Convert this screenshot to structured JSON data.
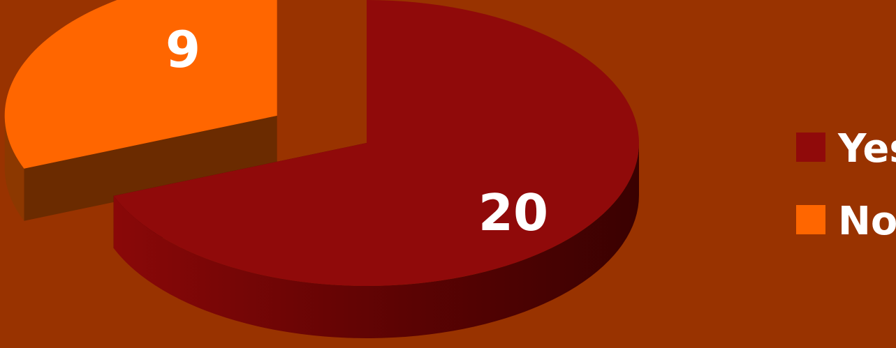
{
  "chart_data": {
    "type": "pie",
    "three_d": true,
    "exploded_slice": "No",
    "legend_position": "right",
    "title": "",
    "slices": [
      {
        "name": "Yes",
        "value": 20,
        "color": "#900A0A"
      },
      {
        "name": "No",
        "value": 9,
        "color": "#FF6600"
      }
    ]
  },
  "colors": {
    "background": "#993300",
    "label_text": "#FFFFFF"
  }
}
